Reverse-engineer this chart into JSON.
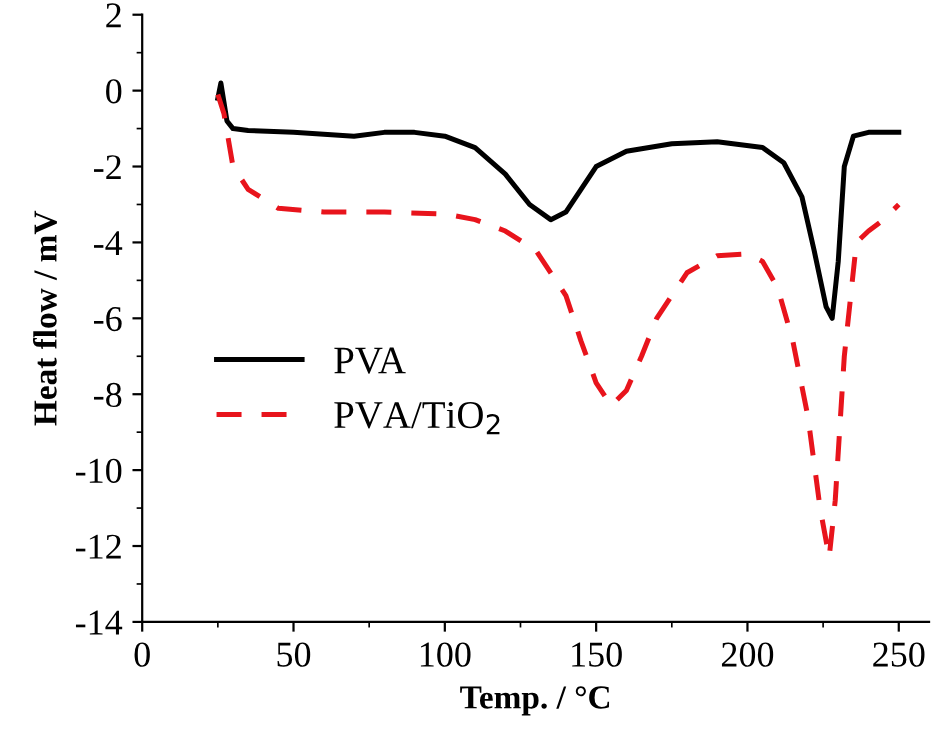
{
  "chart_data": {
    "type": "line",
    "xlabel": "Temp. / °C",
    "ylabel": "Heat flow / mV",
    "xlim": [
      0,
      260
    ],
    "ylim": [
      -14,
      2
    ],
    "xticks": [
      0,
      50,
      100,
      150,
      200,
      250
    ],
    "yticks": [
      -14,
      -12,
      -10,
      -8,
      -6,
      -4,
      -2,
      0,
      2
    ],
    "grid": false,
    "legend": "left",
    "marker": "none",
    "series": [
      {
        "name": "PVA",
        "color": "#000000",
        "line_style": "solid",
        "x": [
          25,
          26,
          27,
          28,
          30,
          35,
          50,
          70,
          80,
          90,
          100,
          110,
          120,
          128,
          135,
          140,
          145,
          150,
          160,
          175,
          190,
          205,
          212,
          218,
          222,
          226,
          228,
          230,
          232,
          235,
          240,
          245,
          250
        ],
        "values": [
          -0.2,
          0.2,
          -0.3,
          -0.8,
          -1.0,
          -1.05,
          -1.1,
          -1.2,
          -1.1,
          -1.1,
          -1.2,
          -1.5,
          -2.2,
          -3.0,
          -3.4,
          -3.2,
          -2.6,
          -2.0,
          -1.6,
          -1.4,
          -1.35,
          -1.5,
          -1.9,
          -2.8,
          -4.2,
          -5.7,
          -6.0,
          -4.5,
          -2.0,
          -1.2,
          -1.1,
          -1.1,
          -1.1
        ]
      },
      {
        "name": "PVA/TiO$_{2}$",
        "color": "#e8141c",
        "line_style": "dashed",
        "x": [
          25,
          27,
          30,
          35,
          45,
          60,
          80,
          100,
          110,
          120,
          130,
          140,
          145,
          150,
          155,
          160,
          165,
          170,
          180,
          190,
          200,
          205,
          210,
          215,
          220,
          224,
          227,
          229,
          232,
          236,
          240,
          245,
          250
        ],
        "values": [
          -0.1,
          -0.6,
          -2.0,
          -2.6,
          -3.1,
          -3.2,
          -3.2,
          -3.25,
          -3.4,
          -3.7,
          -4.2,
          -5.4,
          -6.6,
          -7.7,
          -8.3,
          -7.9,
          -7.0,
          -6.0,
          -4.8,
          -4.35,
          -4.3,
          -4.5,
          -5.2,
          -6.6,
          -8.6,
          -11.0,
          -12.3,
          -10.8,
          -7.0,
          -4.0,
          -3.7,
          -3.4,
          -3.0
        ]
      }
    ]
  }
}
